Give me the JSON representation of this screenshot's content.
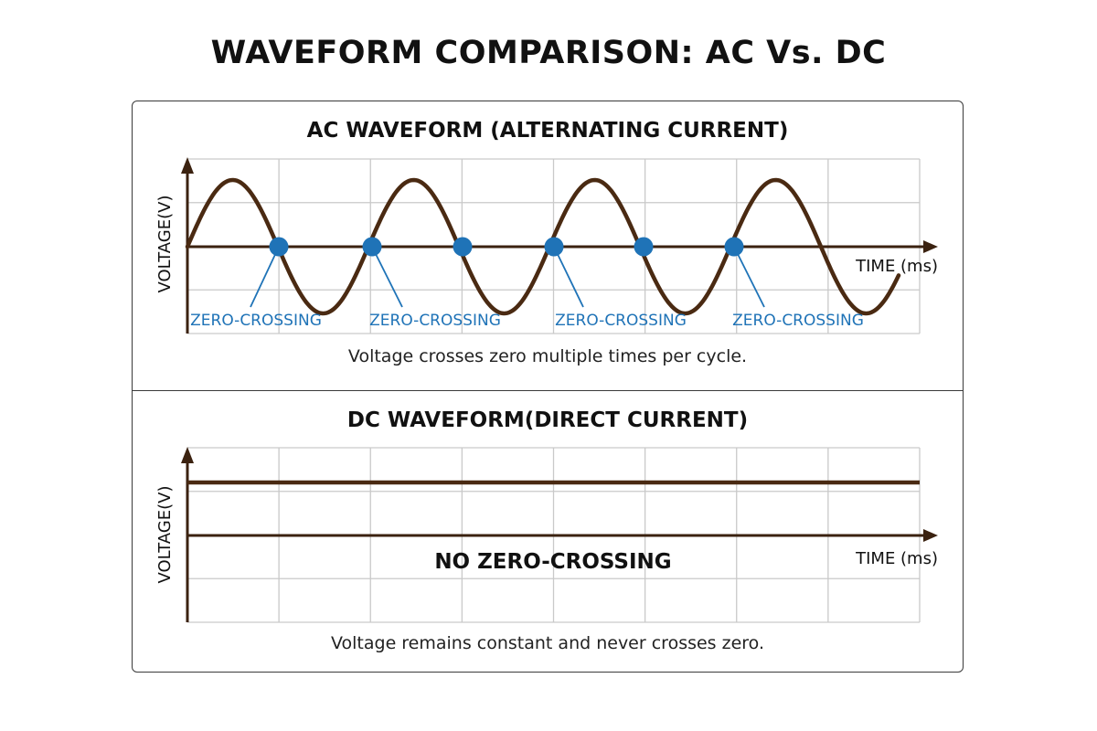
{
  "title": "WAVEFORM COMPARISON: AC Vs. DC",
  "colors": {
    "waveform": "#4a2a12",
    "axis": "#3b2210",
    "grid": "#c9c9c9",
    "zero_crossing": "#1f73b7",
    "border": "#3a3a3a"
  },
  "ac": {
    "title": "AC WAVEFORM (ALTERNATING CURRENT)",
    "y_axis_label": "VOLTAGE(V)",
    "x_axis_label": "TIME (ms)",
    "zero_crossing_label": "ZERO-CROSSING",
    "caption": "Voltage crosses zero multiple times per cycle."
  },
  "dc": {
    "title": "DC WAVEFORM(DIRECT CURRENT)",
    "y_axis_label": "VOLTAGE(V)",
    "x_axis_label": "TIME (ms)",
    "annotation": "NO ZERO-CROSSING",
    "caption": "Voltage remains constant and never crosses zero."
  },
  "chart_data": [
    {
      "type": "line",
      "title": "AC WAVEFORM (ALTERNATING CURRENT)",
      "xlabel": "TIME (ms)",
      "ylabel": "VOLTAGE(V)",
      "grid": true,
      "waveform": "sine",
      "cycles": 4,
      "zero_crossings_marked": 6,
      "zero_crossing_labels": 4
    },
    {
      "type": "line",
      "title": "DC WAVEFORM(DIRECT CURRENT)",
      "xlabel": "TIME (ms)",
      "ylabel": "VOLTAGE(V)",
      "grid": true,
      "waveform": "constant",
      "annotation": "NO ZERO-CROSSING"
    }
  ]
}
